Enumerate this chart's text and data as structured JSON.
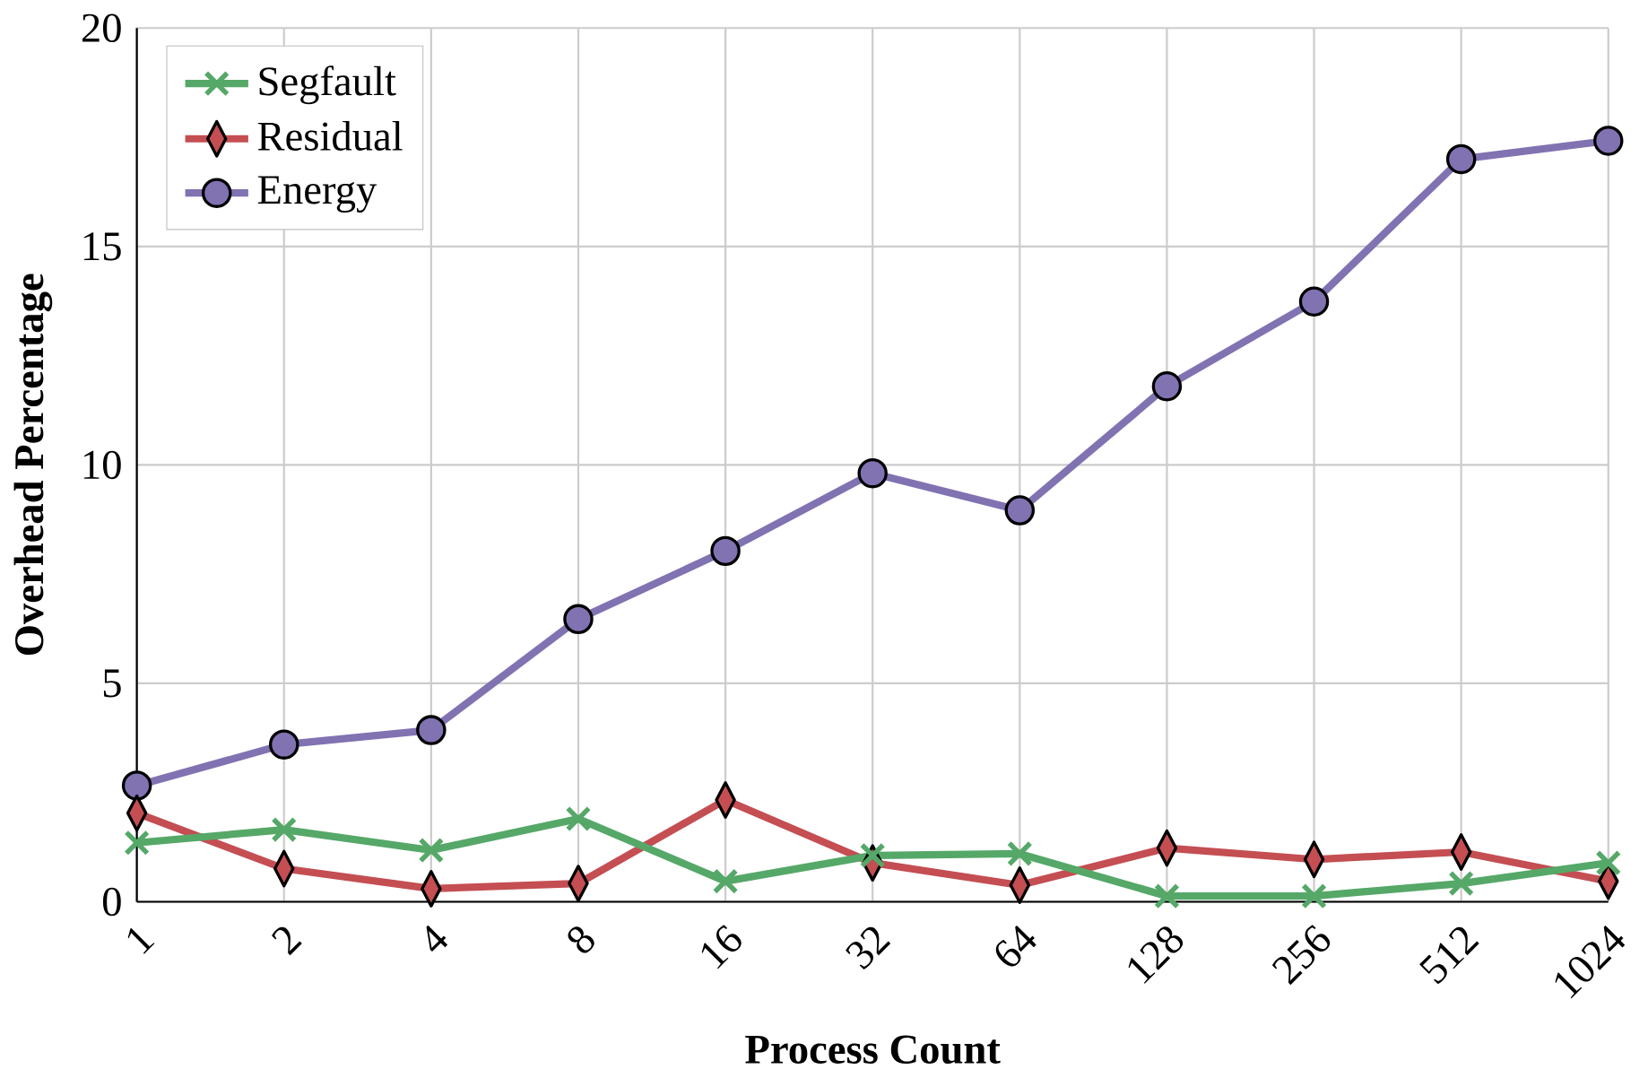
{
  "chart_data": {
    "type": "line",
    "xlabel": "Process Count",
    "ylabel": "Overhead Percentage",
    "categories": [
      "1",
      "2",
      "4",
      "8",
      "16",
      "32",
      "64",
      "128",
      "256",
      "512",
      "1024"
    ],
    "ylim": [
      0,
      20
    ],
    "yticks": [
      0,
      5,
      10,
      15,
      20
    ],
    "grid": true,
    "legend": "top left",
    "series": [
      {
        "name": "Segfault",
        "color": "#55a868",
        "marker": "cross",
        "values": [
          1.35,
          1.65,
          1.18,
          1.9,
          0.47,
          1.06,
          1.1,
          0.13,
          0.13,
          0.42,
          0.89
        ]
      },
      {
        "name": "Residual",
        "color": "#c44e52",
        "marker": "diamond",
        "values": [
          2.03,
          0.76,
          0.3,
          0.42,
          2.33,
          0.89,
          0.38,
          1.23,
          0.97,
          1.14,
          0.47
        ]
      },
      {
        "name": "Energy",
        "color": "#8172b2",
        "marker": "circle",
        "values": [
          2.66,
          3.6,
          3.93,
          6.47,
          8.03,
          9.81,
          8.96,
          11.8,
          13.74,
          17.0,
          17.42
        ]
      }
    ]
  }
}
